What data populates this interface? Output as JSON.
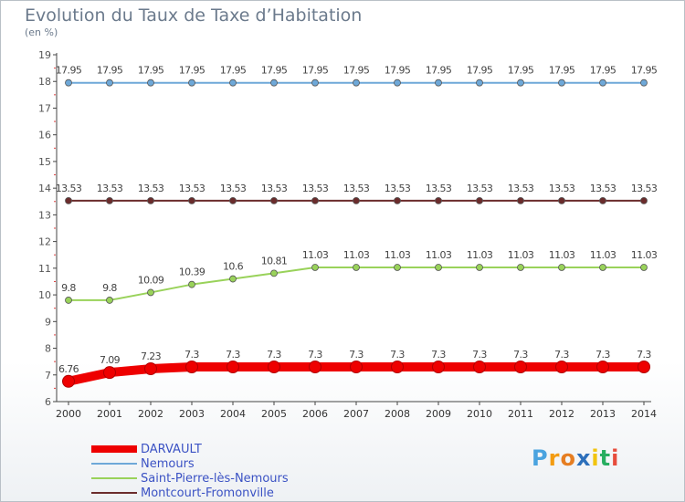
{
  "header": {
    "title": "Evolution du Taux de Taxe d’Habitation",
    "subtitle": "(en %)"
  },
  "logo": {
    "text": "Proxiti",
    "letters": [
      "P",
      "r",
      "o",
      "x",
      "i",
      "t",
      "i"
    ],
    "colors": [
      "#4aa3df",
      "#f39c12",
      "#e67e22",
      "#2c6fbb",
      "#f1c40f",
      "#27ae60",
      "#e74c3c"
    ]
  },
  "chart_data": {
    "type": "line",
    "title": "Evolution du Taux de Taxe d’Habitation",
    "ylabel": "(en %)",
    "xlabel": "",
    "ylim": [
      6,
      19
    ],
    "yticks": [
      6,
      7,
      8,
      9,
      10,
      11,
      12,
      13,
      14,
      15,
      16,
      17,
      18,
      19
    ],
    "grid": false,
    "legend_position": "bottom-left",
    "x": [
      "2000",
      "2001",
      "2002",
      "2003",
      "2004",
      "2005",
      "2006",
      "2007",
      "2008",
      "2009",
      "2010",
      "2011",
      "2012",
      "2013",
      "2014"
    ],
    "series": [
      {
        "name": "DARVAULT",
        "color": "#ee0000",
        "values": [
          6.76,
          7.09,
          7.23,
          7.3,
          7.3,
          7.3,
          7.3,
          7.3,
          7.3,
          7.3,
          7.3,
          7.3,
          7.3,
          7.3,
          7.3
        ],
        "labels": [
          "6.76",
          "7.09",
          "7.23",
          "7.3",
          "7.3",
          "7.3",
          "7.3",
          "7.3",
          "7.3",
          "7.3",
          "7.3",
          "7.3",
          "7.3",
          "7.3",
          "7.3"
        ]
      },
      {
        "name": "Nemours",
        "color": "#6ea8d8",
        "values": [
          17.95,
          17.95,
          17.95,
          17.95,
          17.95,
          17.95,
          17.95,
          17.95,
          17.95,
          17.95,
          17.95,
          17.95,
          17.95,
          17.95,
          17.95
        ],
        "labels": [
          "17.95",
          "17.95",
          "17.95",
          "17.95",
          "17.95",
          "17.95",
          "17.95",
          "17.95",
          "17.95",
          "17.95",
          "17.95",
          "17.95",
          "17.95",
          "17.95",
          "17.95"
        ]
      },
      {
        "name": "Saint-Pierre-lès-Nemours",
        "color": "#99d25a",
        "values": [
          9.8,
          9.8,
          10.09,
          10.39,
          10.6,
          10.81,
          11.03,
          11.03,
          11.03,
          11.03,
          11.03,
          11.03,
          11.03,
          11.03,
          11.03
        ],
        "labels": [
          "9.8",
          "9.8",
          "10.09",
          "10.39",
          "10.6",
          "10.81",
          "11.03",
          "11.03",
          "11.03",
          "11.03",
          "11.03",
          "11.03",
          "11.03",
          "11.03",
          "11.03"
        ]
      },
      {
        "name": "Montcourt-Fromonville",
        "color": "#6b2c2c",
        "values": [
          13.53,
          13.53,
          13.53,
          13.53,
          13.53,
          13.53,
          13.53,
          13.53,
          13.53,
          13.53,
          13.53,
          13.53,
          13.53,
          13.53,
          13.53
        ],
        "labels": [
          "13.53",
          "13.53",
          "13.53",
          "13.53",
          "13.53",
          "13.53",
          "13.53",
          "13.53",
          "13.53",
          "13.53",
          "13.53",
          "13.53",
          "13.53",
          "13.53",
          "13.53"
        ]
      }
    ]
  }
}
